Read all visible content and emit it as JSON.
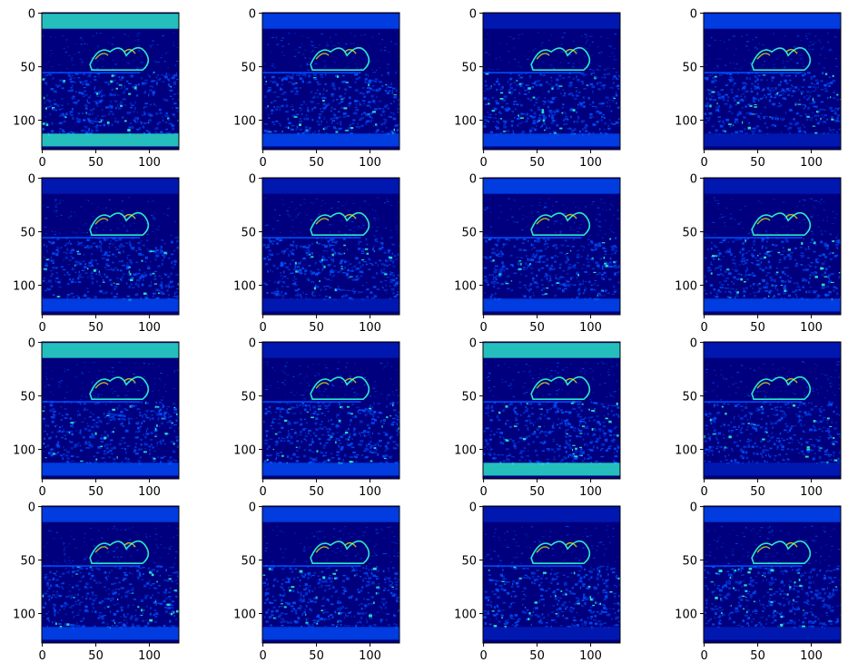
{
  "figure": {
    "rows": 4,
    "cols": 4,
    "colormap": "jet",
    "image_size": 128,
    "x_ticks": [
      "0",
      "50",
      "100"
    ],
    "y_ticks": [
      "0",
      "50",
      "100"
    ],
    "x_tick_values": [
      0,
      50,
      100
    ],
    "y_tick_values": [
      0,
      50,
      100
    ],
    "colors": {
      "background": "#00007f",
      "mid": "#0050ff",
      "high": "#30ffd0",
      "peak": "#ffff00"
    }
  },
  "panels": [
    {
      "id": 1,
      "top_band": "high",
      "bottom_band": "high"
    },
    {
      "id": 2,
      "top_band": "mid",
      "bottom_band": "mid"
    },
    {
      "id": 3,
      "top_band": "low",
      "bottom_band": "mid"
    },
    {
      "id": 4,
      "top_band": "mid",
      "bottom_band": "low"
    },
    {
      "id": 5,
      "top_band": "low",
      "bottom_band": "mid"
    },
    {
      "id": 6,
      "top_band": "low",
      "bottom_band": "low"
    },
    {
      "id": 7,
      "top_band": "mid",
      "bottom_band": "mid"
    },
    {
      "id": 8,
      "top_band": "low",
      "bottom_band": "mid"
    },
    {
      "id": 9,
      "top_band": "high",
      "bottom_band": "mid"
    },
    {
      "id": 10,
      "top_band": "low",
      "bottom_band": "mid"
    },
    {
      "id": 11,
      "top_band": "high",
      "bottom_band": "high"
    },
    {
      "id": 12,
      "top_band": "low",
      "bottom_band": "low"
    },
    {
      "id": 13,
      "top_band": "mid",
      "bottom_band": "mid"
    },
    {
      "id": 14,
      "top_band": "mid",
      "bottom_band": "mid"
    },
    {
      "id": 15,
      "top_band": "low",
      "bottom_band": "low"
    },
    {
      "id": 16,
      "top_band": "mid",
      "bottom_band": "low"
    }
  ]
}
